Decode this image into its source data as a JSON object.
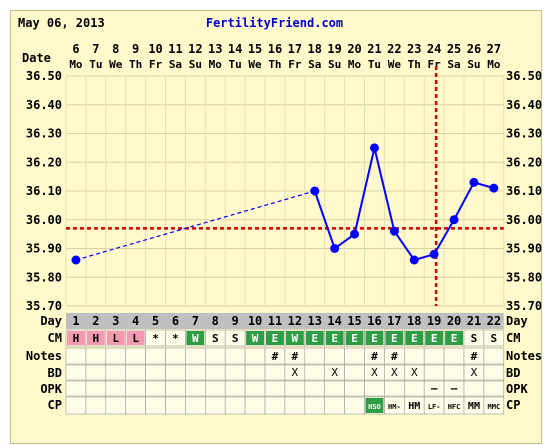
{
  "header": {
    "date": "May 06, 2013",
    "site": "FertilityFriend.com"
  },
  "row_labels": {
    "date": "Date",
    "day": "Day",
    "cm": "CM",
    "notes": "Notes",
    "bd": "BD",
    "opk": "OPK",
    "cp": "CP"
  },
  "colors": {
    "background": "#fff9cc",
    "temp_line": "#0000ff",
    "coverline": "#cc0000",
    "cm_h": "#f49ab0",
    "cm_w": "#2e9e44",
    "cm_e": "#2e9e44",
    "cp_hso": "#2e9e44",
    "day_band": "#bfbfbf"
  },
  "chart_data": {
    "type": "line",
    "title": "",
    "x_dates": [
      "6",
      "7",
      "8",
      "9",
      "10",
      "11",
      "12",
      "13",
      "14",
      "15",
      "16",
      "17",
      "18",
      "19",
      "20",
      "21",
      "22",
      "23",
      "24",
      "25",
      "26",
      "27"
    ],
    "x_weekdays": [
      "Mo",
      "Tu",
      "We",
      "Th",
      "Fr",
      "Sa",
      "Su",
      "Mo",
      "Tu",
      "We",
      "Th",
      "Fr",
      "Sa",
      "Su",
      "Mo",
      "Tu",
      "We",
      "Th",
      "Fr",
      "Sa",
      "Su",
      "Mo"
    ],
    "cycle_days": [
      "1",
      "2",
      "3",
      "4",
      "5",
      "6",
      "7",
      "8",
      "9",
      "10",
      "11",
      "12",
      "13",
      "14",
      "15",
      "16",
      "17",
      "18",
      "19",
      "20",
      "21",
      "22"
    ],
    "y_ticks": [
      "35.70",
      "35.80",
      "35.90",
      "36.00",
      "36.10",
      "36.20",
      "36.30",
      "36.40",
      "36.50"
    ],
    "ylim": [
      35.7,
      36.5
    ],
    "coverline": 35.97,
    "ovulation_day": 19,
    "series": [
      {
        "values": [
          35.86,
          null,
          null,
          null,
          null,
          null,
          null,
          null,
          null,
          null,
          null,
          null,
          36.1,
          35.9,
          35.95,
          36.25,
          35.96,
          35.86,
          35.88,
          36.0,
          36.13,
          36.11
        ]
      }
    ],
    "dashed_from_day": 1,
    "dashed_to_day": 13,
    "cm": [
      "H",
      "H",
      "L",
      "L",
      "*",
      "*",
      "W",
      "S",
      "S",
      "W",
      "E",
      "W",
      "E",
      "E",
      "E",
      "E",
      "E",
      "E",
      "E",
      "E",
      "S",
      "S"
    ],
    "notes": [
      "",
      "",
      "",
      "",
      "",
      "",
      "",
      "",
      "",
      "",
      "#",
      "#",
      "",
      "",
      "",
      "#",
      "#",
      "",
      "",
      "",
      "#",
      ""
    ],
    "bd": [
      "",
      "",
      "",
      "",
      "",
      "",
      "",
      "",
      "",
      "",
      "",
      "X",
      "",
      "X",
      "",
      "X",
      "X",
      "X",
      "",
      "",
      "X",
      ""
    ],
    "opk": [
      "",
      "",
      "",
      "",
      "",
      "",
      "",
      "",
      "",
      "",
      "",
      "",
      "",
      "",
      "",
      "",
      "",
      "",
      "–",
      "–",
      "",
      ""
    ],
    "cp": [
      "",
      "",
      "",
      "",
      "",
      "",
      "",
      "",
      "",
      "",
      "",
      "",
      "",
      "",
      "",
      "HSO",
      "HM-",
      "HM",
      "LF-",
      "HFC",
      "MM",
      "MMC"
    ]
  }
}
